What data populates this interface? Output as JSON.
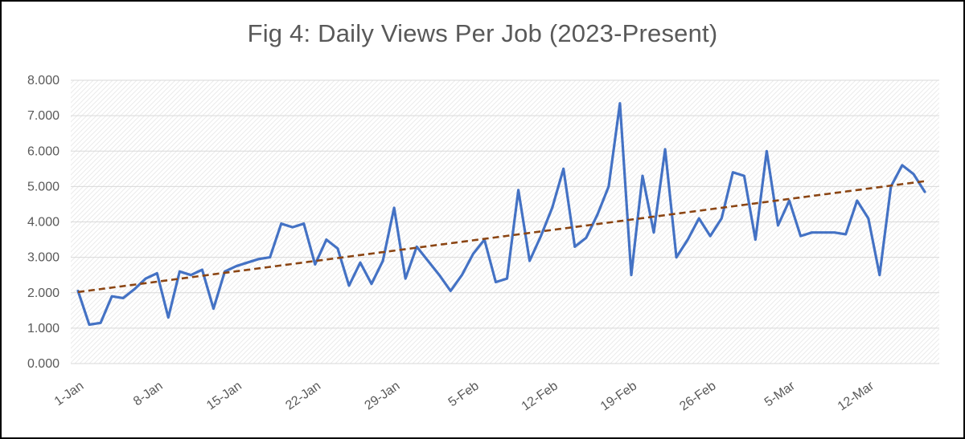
{
  "title": "Fig 4: Daily Views Per Job (2023-Present)",
  "colors": {
    "series": "#4472C4",
    "trendline": "#8B4513",
    "grid": "#d9d9d9",
    "axis_text": "#595959",
    "title_text": "#595959",
    "hatch": "#ebebeb",
    "background": "#ffffff",
    "border": "#000000"
  },
  "chart_data": {
    "type": "line",
    "title": "Fig 4: Daily Views Per Job (2023-Present)",
    "xlabel": "",
    "ylabel": "",
    "ylim": [
      0,
      8
    ],
    "grid": "horizontal",
    "legend": "none",
    "plot_background": "diagonal-hatch",
    "y_tick_labels": [
      "0.000",
      "1.000",
      "2.000",
      "3.000",
      "4.000",
      "5.000",
      "6.000",
      "7.000",
      "8.000"
    ],
    "x_tick_labels": [
      "1-Jan",
      "8-Jan",
      "15-Jan",
      "22-Jan",
      "29-Jan",
      "5-Feb",
      "12-Feb",
      "19-Feb",
      "26-Feb",
      "5-Mar",
      "12-Mar"
    ],
    "x_tick_positions": [
      0,
      7,
      14,
      21,
      28,
      35,
      42,
      49,
      56,
      63,
      70
    ],
    "series": [
      {
        "name": "Daily Views Per Job",
        "style": "solid",
        "values": [
          2.05,
          1.1,
          1.15,
          1.9,
          1.85,
          2.1,
          2.4,
          2.55,
          1.3,
          2.6,
          2.5,
          2.65,
          1.55,
          2.6,
          2.75,
          2.85,
          2.95,
          3.0,
          3.95,
          3.85,
          3.95,
          2.8,
          3.5,
          3.25,
          2.2,
          2.85,
          2.25,
          2.9,
          4.4,
          2.4,
          3.3,
          2.9,
          2.5,
          2.05,
          2.5,
          3.1,
          3.5,
          2.3,
          2.4,
          4.9,
          2.9,
          3.6,
          4.4,
          5.5,
          3.3,
          3.55,
          4.2,
          5.0,
          7.35,
          2.5,
          5.3,
          3.7,
          6.05,
          3.0,
          3.5,
          4.1,
          3.6,
          4.1,
          5.4,
          5.3,
          3.5,
          6.0,
          3.9,
          4.6,
          3.6,
          3.7,
          3.7,
          3.7,
          3.65,
          4.6,
          4.1,
          2.5,
          5.0,
          5.6,
          5.35,
          4.85
        ]
      }
    ],
    "trendline": {
      "name": "Linear trendline",
      "style": "dashed",
      "start_value": 2.02,
      "end_value": 5.15
    }
  }
}
